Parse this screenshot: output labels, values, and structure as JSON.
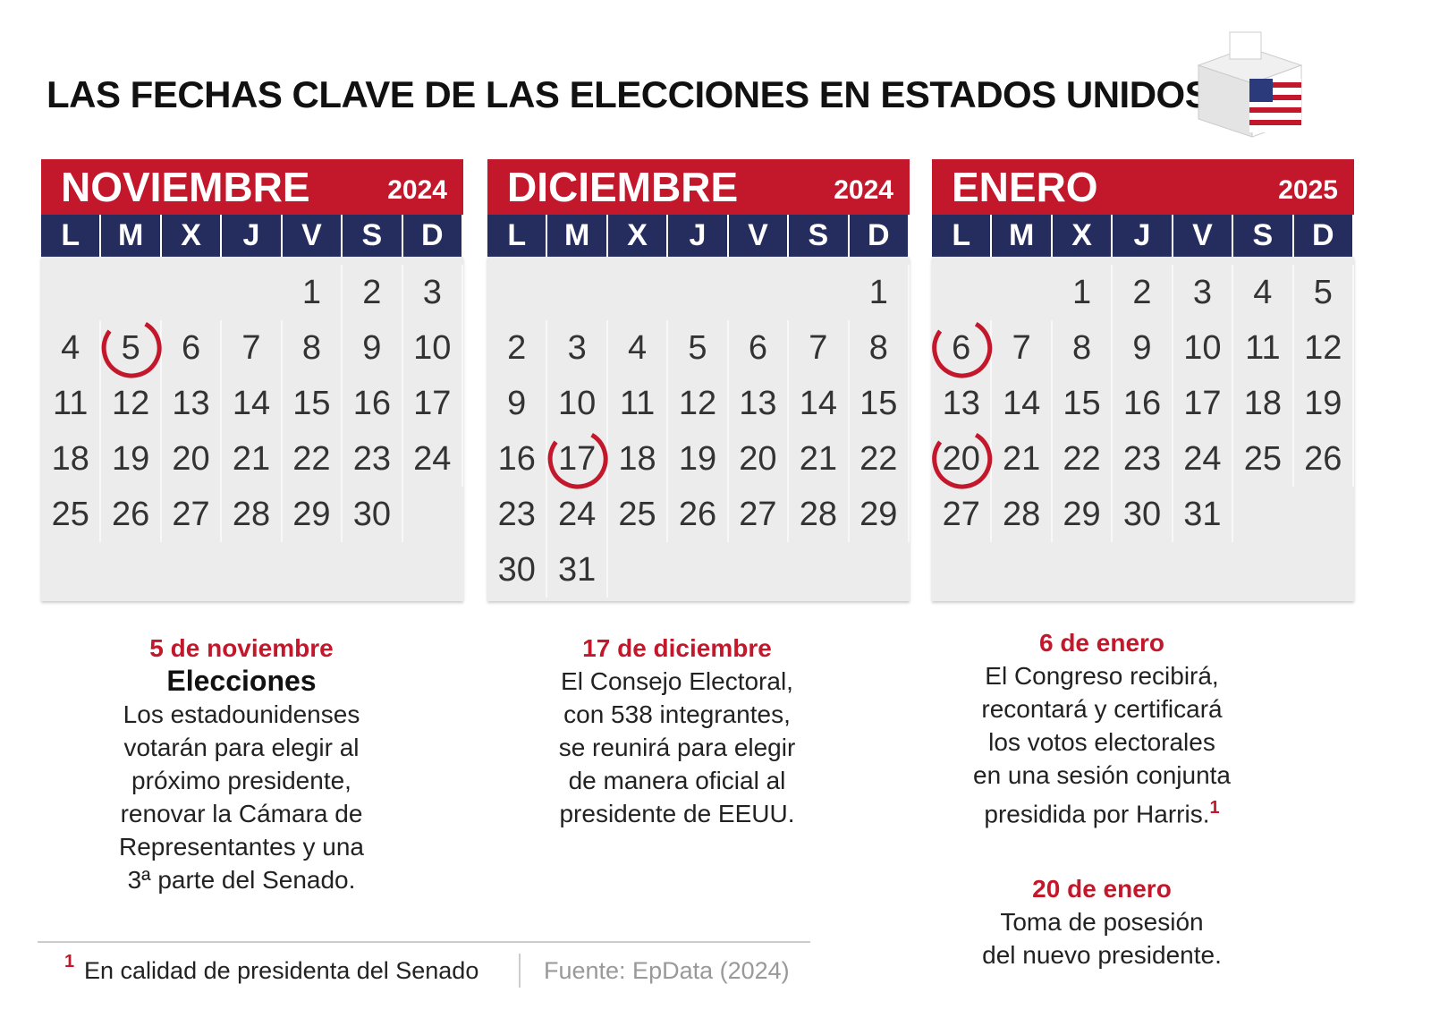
{
  "header": {
    "title": "LAS FECHAS CLAVE DE LAS ELECCIONES EN ESTADOS UNIDOS"
  },
  "calendars": [
    {
      "month": "NOVIEMBRE",
      "year": "2024",
      "weekdays": [
        "L",
        "M",
        "X",
        "J",
        "V",
        "S",
        "D"
      ],
      "weeks": [
        [
          null,
          null,
          null,
          null,
          1,
          2,
          3
        ],
        [
          4,
          5,
          6,
          7,
          8,
          9,
          10
        ],
        [
          11,
          12,
          13,
          14,
          15,
          16,
          17
        ],
        [
          18,
          19,
          20,
          21,
          22,
          23,
          24
        ],
        [
          25,
          26,
          27,
          28,
          29,
          30,
          null
        ]
      ],
      "circled": [
        5
      ]
    },
    {
      "month": "DICIEMBRE",
      "year": "2024",
      "weekdays": [
        "L",
        "M",
        "X",
        "J",
        "V",
        "S",
        "D"
      ],
      "weeks": [
        [
          null,
          null,
          null,
          null,
          null,
          null,
          1
        ],
        [
          2,
          3,
          4,
          5,
          6,
          7,
          8
        ],
        [
          9,
          10,
          11,
          12,
          13,
          14,
          15
        ],
        [
          16,
          17,
          18,
          19,
          20,
          21,
          22
        ],
        [
          23,
          24,
          25,
          26,
          27,
          28,
          29
        ],
        [
          30,
          31,
          null,
          null,
          null,
          null,
          null
        ]
      ],
      "circled": [
        17
      ]
    },
    {
      "month": "ENERO",
      "year": "2025",
      "weekdays": [
        "L",
        "M",
        "X",
        "J",
        "V",
        "S",
        "D"
      ],
      "weeks": [
        [
          null,
          null,
          1,
          2,
          3,
          4,
          5
        ],
        [
          6,
          7,
          8,
          9,
          10,
          11,
          12
        ],
        [
          13,
          14,
          15,
          16,
          17,
          18,
          19
        ],
        [
          20,
          21,
          22,
          23,
          24,
          25,
          26
        ],
        [
          27,
          28,
          29,
          30,
          31,
          null,
          null
        ]
      ],
      "circled": [
        6,
        20
      ]
    }
  ],
  "notes": [
    [
      {
        "date": "5 de noviembre",
        "heading": "Elecciones",
        "lines": [
          "Los estadounidenses",
          "votarán para elegir al",
          "próximo presidente,",
          "renovar la Cámara de",
          "Representantes y una",
          "3ª parte del Senado."
        ]
      }
    ],
    [
      {
        "date": "17 de diciembre",
        "lines": [
          "El Consejo Electoral,",
          "con 538 integrantes,",
          "se reunirá para elegir",
          "de manera oficial al",
          "presidente de EEUU."
        ]
      }
    ],
    [
      {
        "date": "6 de enero",
        "lines": [
          "El Congreso recibirá,",
          "recontará y certificará",
          "los votos electorales",
          "en una sesión conjunta",
          "presidida por Harris."
        ],
        "sup": "1"
      },
      {
        "date": "20 de enero",
        "lines": [
          "Toma de posesión",
          "del nuevo presidente."
        ]
      }
    ]
  ],
  "footer": {
    "marker": "1",
    "note": "En calidad de presidenta del Senado",
    "source": "Fuente: EpData (2024)"
  }
}
